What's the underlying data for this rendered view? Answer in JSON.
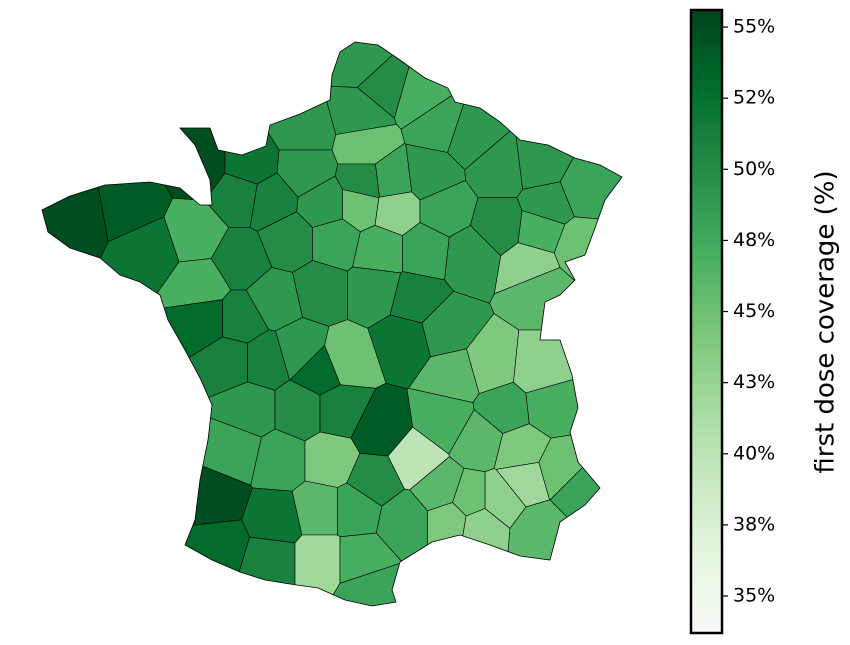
{
  "chart_data": {
    "type": "choropleth",
    "colorbar_label": "first dose coverage (%)",
    "clim": [
      33.7,
      55.6
    ],
    "colormap": [
      "#f7fcf5",
      "#e5f5e0",
      "#c7e9c0",
      "#a1d99b",
      "#74c476",
      "#41ab5d",
      "#238b45",
      "#006d2c",
      "#00441b"
    ],
    "cticks": [
      {
        "value": 35,
        "label": "35%"
      },
      {
        "value": 37.5,
        "label": "38%"
      },
      {
        "value": 40,
        "label": "40%"
      },
      {
        "value": 42.5,
        "label": "43%"
      },
      {
        "value": 45,
        "label": "45%"
      },
      {
        "value": 47.5,
        "label": "48%"
      },
      {
        "value": 50,
        "label": "50%"
      },
      {
        "value": 52.5,
        "label": "52%"
      },
      {
        "value": 55,
        "label": "55%"
      }
    ],
    "values": [
      49,
      50,
      47,
      49,
      48,
      49,
      45,
      49,
      48,
      50,
      45,
      43,
      49,
      48,
      49,
      49,
      48,
      50,
      49,
      49,
      47,
      45,
      43,
      46,
      55,
      52,
      49,
      49,
      51,
      51,
      55,
      54,
      52,
      47,
      47,
      51,
      50,
      48,
      47,
      48,
      51,
      49,
      50,
      49,
      51,
      53,
      51,
      51,
      49,
      45,
      52,
      49,
      46,
      44,
      48,
      43,
      47,
      49,
      50,
      53,
      51,
      54,
      40,
      47,
      46,
      44,
      42,
      45,
      48,
      43,
      46,
      45,
      48,
      48,
      44,
      50,
      46,
      55,
      52,
      53,
      51,
      46,
      48,
      48,
      42,
      47,
      48,
      44,
      43
    ]
  }
}
